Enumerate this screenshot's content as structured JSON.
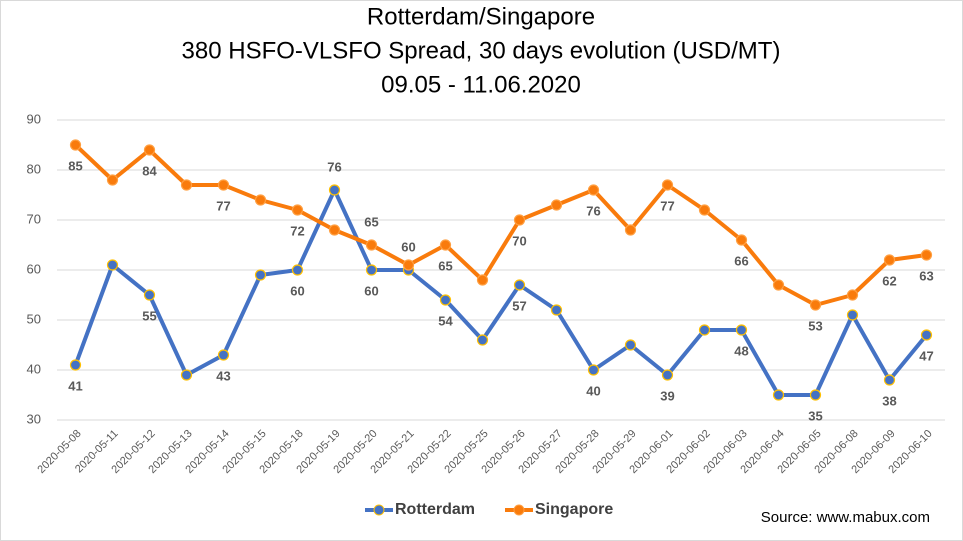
{
  "chart_data": {
    "type": "line",
    "title": "Rotterdam/Singapore",
    "subtitle": "380 HSFO-VLSFO Spread, 30 days evolution (USD/MT)",
    "period": "09.05 - 11.06.2020",
    "source": "Source: www.mabux.com",
    "categories": [
      "2020-05-08",
      "2020-05-11",
      "2020-05-12",
      "2020-05-13",
      "2020-05-14",
      "2020-05-15",
      "2020-05-18",
      "2020-05-19",
      "2020-05-20",
      "2020-05-21",
      "2020-05-22",
      "2020-05-25",
      "2020-05-26",
      "2020-05-27",
      "2020-05-28",
      "2020-05-29",
      "2020-06-01",
      "2020-06-02",
      "2020-06-03",
      "2020-06-04",
      "2020-06-05",
      "2020-06-08",
      "2020-06-09",
      "2020-06-10"
    ],
    "series": [
      {
        "name": "Rotterdam",
        "color": "#4472c4",
        "values": [
          41,
          61,
          55,
          39,
          43,
          59,
          60,
          76,
          60,
          60,
          54,
          46,
          57,
          52,
          40,
          45,
          39,
          48,
          48,
          35,
          35,
          51,
          38,
          47
        ],
        "value_labels": [
          "41",
          null,
          "55",
          null,
          "43",
          null,
          "60",
          "76",
          "60",
          "60",
          "54",
          null,
          "57",
          null,
          "40",
          null,
          "39",
          null,
          "48",
          null,
          "35",
          null,
          "38",
          "47"
        ]
      },
      {
        "name": "Singapore",
        "color": "#f97b0c",
        "values": [
          85,
          78,
          84,
          77,
          77,
          74,
          72,
          68,
          65,
          61,
          65,
          58,
          70,
          73,
          76,
          68,
          77,
          72,
          66,
          57,
          53,
          55,
          62,
          63
        ],
        "value_labels": [
          "85",
          null,
          "84",
          null,
          "77",
          null,
          "72",
          null,
          "65",
          null,
          "65",
          null,
          "70",
          null,
          "76",
          null,
          "77",
          null,
          "66",
          null,
          "53",
          null,
          "62",
          "63"
        ]
      }
    ],
    "ylim": [
      30,
      90
    ],
    "yticks": [
      30,
      40,
      50,
      60,
      70,
      80,
      90
    ],
    "grid": true
  }
}
